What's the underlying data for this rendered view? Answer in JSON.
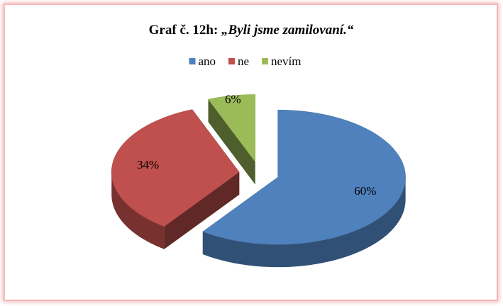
{
  "chart_data": {
    "type": "pie",
    "title": "Graf č. 12h:",
    "subtitle": "„Byli jsme zamilovaní.“",
    "categories": [
      "ano",
      "ne",
      "nevím"
    ],
    "values": [
      60,
      34,
      6
    ],
    "value_labels": [
      "60%",
      "34%",
      "6%"
    ],
    "colors": [
      "#4f81bd",
      "#c0504d",
      "#9bbb59"
    ],
    "legend": "top"
  }
}
